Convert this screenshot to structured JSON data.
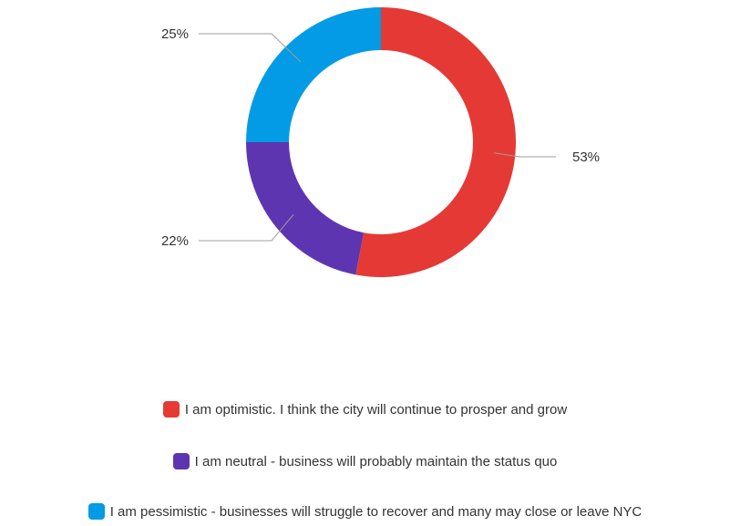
{
  "chart_data": {
    "type": "pie",
    "donut": true,
    "series": [
      {
        "name": "I am optimistic. I think the city will continue to prosper and grow",
        "value": 53,
        "label": "53%",
        "color": "#E53935"
      },
      {
        "name": "I am neutral - business will probably maintain the status quo",
        "value": 22,
        "label": "22%",
        "color": "#5E35B1"
      },
      {
        "name": "I am pessimistic - businesses will struggle to recover and many may close or leave NYC",
        "value": 25,
        "label": "25%",
        "color": "#039BE5"
      }
    ],
    "legend_position": "bottom"
  }
}
